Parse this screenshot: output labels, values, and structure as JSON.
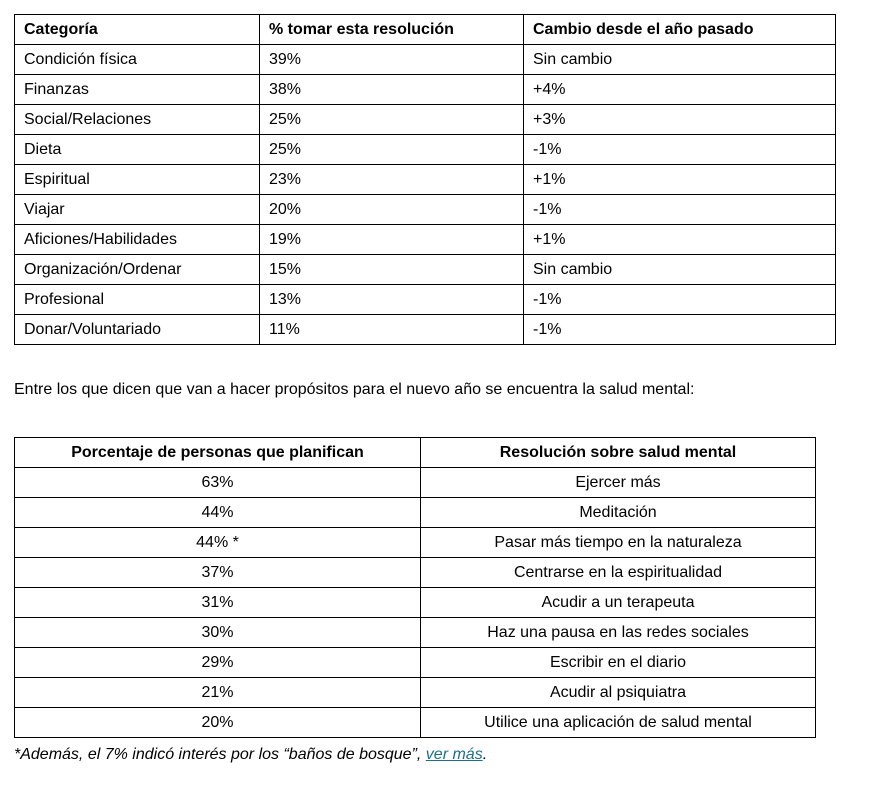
{
  "colors": {
    "link": "#1f6e8c",
    "border": "#000000",
    "text": "#000000"
  },
  "resolutions_table": {
    "headers": [
      "Categoría",
      "% tomar esta resolución",
      "Cambio desde el año pasado"
    ],
    "rows": [
      [
        "Condición física",
        "39%",
        "Sin cambio"
      ],
      [
        "Finanzas",
        "38%",
        "+4%"
      ],
      [
        "Social/Relaciones",
        "25%",
        "+3%"
      ],
      [
        "Dieta",
        "25%",
        "-1%"
      ],
      [
        "Espiritual",
        "23%",
        "+1%"
      ],
      [
        "Viajar",
        "20%",
        "-1%"
      ],
      [
        "Aficiones/Habilidades",
        "19%",
        "+1%"
      ],
      [
        "Organización/Ordenar",
        "15%",
        "Sin cambio"
      ],
      [
        "Profesional",
        "13%",
        "-1%"
      ],
      [
        "Donar/Voluntariado",
        "11%",
        "-1%"
      ]
    ]
  },
  "intro_text": "Entre los que dicen que van a hacer propósitos para el nuevo año se encuentra la salud mental:",
  "mental_health_table": {
    "headers": [
      "Porcentaje de personas que planifican",
      "Resolución sobre salud mental"
    ],
    "rows": [
      [
        "63%",
        "Ejercer más"
      ],
      [
        "44%",
        "Meditación"
      ],
      [
        "44% *",
        "Pasar más tiempo en la naturaleza"
      ],
      [
        "37%",
        "Centrarse en la espiritualidad"
      ],
      [
        "31%",
        "Acudir a un terapeuta"
      ],
      [
        "30%",
        "Haz una pausa en las redes sociales"
      ],
      [
        "29%",
        "Escribir en el diario"
      ],
      [
        "21%",
        "Acudir al psiquiatra"
      ],
      [
        "20%",
        "Utilice una aplicación de salud mental"
      ]
    ]
  },
  "footnote": {
    "prefix": "*Además, el 7% indicó interés por los “baños de bosque”, ",
    "link_text": "ver más",
    "suffix": "."
  }
}
